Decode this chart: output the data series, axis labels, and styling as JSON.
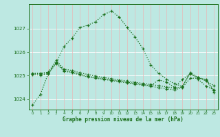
{
  "xlabel": "Graphe pression niveau de la mer (hPa)",
  "background_color": "#bde8e2",
  "line_color": "#1a6e1a",
  "grid_color_h": "#ffffff",
  "grid_color_v": "#e8b8b8",
  "ylim": [
    1023.55,
    1028.05
  ],
  "xlim": [
    -0.5,
    23.5
  ],
  "yticks": [
    1024,
    1025,
    1026,
    1027
  ],
  "xticks": [
    0,
    1,
    2,
    3,
    4,
    5,
    6,
    7,
    8,
    9,
    10,
    11,
    12,
    13,
    14,
    15,
    16,
    17,
    18,
    19,
    20,
    21,
    22,
    23
  ],
  "lines": [
    [
      1023.75,
      1024.2,
      1025.1,
      1025.55,
      1026.25,
      1026.6,
      1027.05,
      1027.15,
      1027.3,
      1027.6,
      1027.75,
      1027.5,
      1027.05,
      1026.65,
      1026.15,
      1025.45,
      1025.1,
      1024.85,
      1024.65,
      1024.55,
      1025.1,
      1024.85,
      1024.55,
      1024.4
    ],
    [
      1025.1,
      1025.1,
      1025.15,
      1025.65,
      1025.28,
      1025.22,
      1025.12,
      1025.05,
      1024.98,
      1024.92,
      1024.87,
      1024.82,
      1024.77,
      1024.72,
      1024.67,
      1024.62,
      1024.57,
      1024.52,
      1024.47,
      1024.52,
      1025.12,
      1024.92,
      1024.77,
      1024.58
    ],
    [
      1025.08,
      1025.08,
      1025.12,
      1025.58,
      1025.22,
      1025.16,
      1025.06,
      1024.97,
      1024.92,
      1024.87,
      1024.82,
      1024.77,
      1024.72,
      1024.67,
      1024.62,
      1024.57,
      1024.82,
      1024.72,
      1024.5,
      1024.84,
      1025.07,
      1024.93,
      1024.82,
      1024.38
    ],
    [
      1025.05,
      1025.02,
      1025.08,
      1025.52,
      1025.19,
      1025.13,
      1025.03,
      1024.94,
      1024.89,
      1024.84,
      1024.79,
      1024.74,
      1024.69,
      1024.64,
      1024.59,
      1024.54,
      1024.49,
      1024.44,
      1024.39,
      1024.49,
      1024.89,
      1024.89,
      1024.84,
      1024.28
    ]
  ]
}
